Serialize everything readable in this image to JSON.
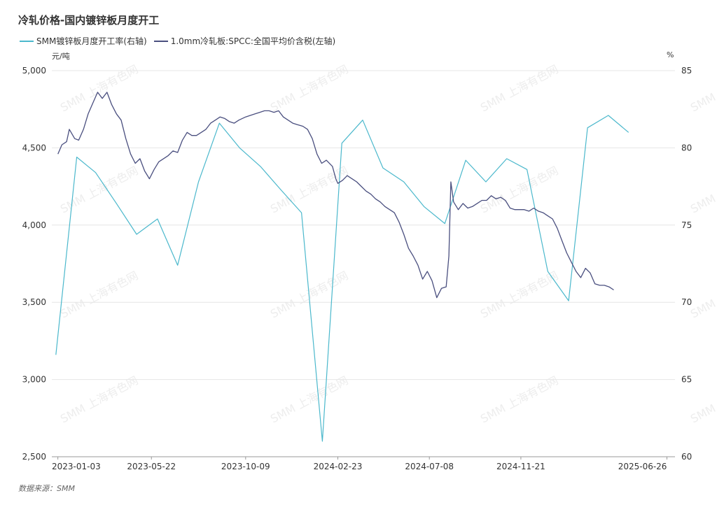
{
  "title": "冷轧价格-国内镀锌板月度开工",
  "source": "数据来源：SMM",
  "watermark": "SMM 上海有色网",
  "units": {
    "left": "元/吨",
    "right": "%"
  },
  "chart_data": {
    "type": "line",
    "title": "冷轧价格-国内镀锌板月度开工",
    "grid": true,
    "legend_position": "top-left",
    "x_range": [
      "2022-12-25",
      "2025-07-08"
    ],
    "x_ticks": [
      "2023-01-03",
      "2023-05-22",
      "2023-10-09",
      "2024-02-23",
      "2024-07-08",
      "2024-11-21",
      "2025-06-26"
    ],
    "left_axis": {
      "label": "元/吨",
      "ylim": [
        2500,
        5000
      ],
      "ticks": [
        "2,500",
        "3,000",
        "3,500",
        "4,000",
        "4,500",
        "5,000"
      ]
    },
    "right_axis": {
      "label": "%",
      "ylim": [
        60,
        85
      ],
      "ticks": [
        "60",
        "65",
        "70",
        "75",
        "80",
        "85"
      ]
    },
    "series": [
      {
        "name": "SMM镀锌板月度开工率(右轴)",
        "axis": "right",
        "color": "#4BB8CC",
        "points": [
          [
            "2022-12-31",
            66.6
          ],
          [
            "2023-01-31",
            79.4
          ],
          [
            "2023-02-28",
            78.4
          ],
          [
            "2023-03-31",
            76.4
          ],
          [
            "2023-04-30",
            74.4
          ],
          [
            "2023-05-31",
            75.4
          ],
          [
            "2023-06-30",
            72.4
          ],
          [
            "2023-07-31",
            77.8
          ],
          [
            "2023-08-31",
            81.6
          ],
          [
            "2023-09-30",
            80.0
          ],
          [
            "2023-10-31",
            78.8
          ],
          [
            "2023-11-30",
            77.3
          ],
          [
            "2023-12-31",
            75.8
          ],
          [
            "2024-01-31",
            61.0
          ],
          [
            "2024-02-29",
            80.3
          ],
          [
            "2024-03-31",
            81.8
          ],
          [
            "2024-04-30",
            78.7
          ],
          [
            "2024-05-31",
            77.8
          ],
          [
            "2024-06-30",
            76.2
          ],
          [
            "2024-07-31",
            75.1
          ],
          [
            "2024-08-31",
            79.2
          ],
          [
            "2024-09-30",
            77.8
          ],
          [
            "2024-10-31",
            79.3
          ],
          [
            "2024-11-30",
            78.6
          ],
          [
            "2024-12-31",
            72.0
          ],
          [
            "2025-01-31",
            70.1
          ],
          [
            "2025-02-28",
            81.3
          ],
          [
            "2025-03-31",
            82.1
          ],
          [
            "2025-04-30",
            81.0
          ]
        ]
      },
      {
        "name": "1.0mm冷轧板:SPCC:全国平均价含税(左轴)",
        "axis": "left",
        "color": "#4A4F7F",
        "points": [
          [
            "2023-01-03",
            4460
          ],
          [
            "2023-01-09",
            4520
          ],
          [
            "2023-01-16",
            4540
          ],
          [
            "2023-01-20",
            4620
          ],
          [
            "2023-01-28",
            4560
          ],
          [
            "2023-02-03",
            4550
          ],
          [
            "2023-02-10",
            4620
          ],
          [
            "2023-02-17",
            4720
          ],
          [
            "2023-02-24",
            4790
          ],
          [
            "2023-03-03",
            4860
          ],
          [
            "2023-03-10",
            4820
          ],
          [
            "2023-03-17",
            4860
          ],
          [
            "2023-03-24",
            4780
          ],
          [
            "2023-03-31",
            4720
          ],
          [
            "2023-04-07",
            4680
          ],
          [
            "2023-04-14",
            4560
          ],
          [
            "2023-04-21",
            4460
          ],
          [
            "2023-04-28",
            4400
          ],
          [
            "2023-05-05",
            4430
          ],
          [
            "2023-05-12",
            4350
          ],
          [
            "2023-05-19",
            4300
          ],
          [
            "2023-05-26",
            4360
          ],
          [
            "2023-06-02",
            4410
          ],
          [
            "2023-06-09",
            4430
          ],
          [
            "2023-06-16",
            4450
          ],
          [
            "2023-06-23",
            4480
          ],
          [
            "2023-06-30",
            4470
          ],
          [
            "2023-07-07",
            4550
          ],
          [
            "2023-07-14",
            4600
          ],
          [
            "2023-07-21",
            4580
          ],
          [
            "2023-07-28",
            4580
          ],
          [
            "2023-08-04",
            4600
          ],
          [
            "2023-08-11",
            4620
          ],
          [
            "2023-08-18",
            4660
          ],
          [
            "2023-08-25",
            4680
          ],
          [
            "2023-09-01",
            4700
          ],
          [
            "2023-09-08",
            4690
          ],
          [
            "2023-09-15",
            4670
          ],
          [
            "2023-09-22",
            4660
          ],
          [
            "2023-09-29",
            4680
          ],
          [
            "2023-10-09",
            4700
          ],
          [
            "2023-10-16",
            4710
          ],
          [
            "2023-10-23",
            4720
          ],
          [
            "2023-10-30",
            4730
          ],
          [
            "2023-11-06",
            4740
          ],
          [
            "2023-11-13",
            4740
          ],
          [
            "2023-11-20",
            4730
          ],
          [
            "2023-11-27",
            4740
          ],
          [
            "2023-12-04",
            4700
          ],
          [
            "2023-12-11",
            4680
          ],
          [
            "2023-12-18",
            4660
          ],
          [
            "2023-12-25",
            4650
          ],
          [
            "2024-01-02",
            4640
          ],
          [
            "2024-01-09",
            4620
          ],
          [
            "2024-01-16",
            4560
          ],
          [
            "2024-01-23",
            4460
          ],
          [
            "2024-01-30",
            4400
          ],
          [
            "2024-02-06",
            4420
          ],
          [
            "2024-02-15",
            4380
          ],
          [
            "2024-02-20",
            4300
          ],
          [
            "2024-02-23",
            4270
          ],
          [
            "2024-03-01",
            4290
          ],
          [
            "2024-03-08",
            4320
          ],
          [
            "2024-03-15",
            4300
          ],
          [
            "2024-03-22",
            4280
          ],
          [
            "2024-03-29",
            4250
          ],
          [
            "2024-04-05",
            4220
          ],
          [
            "2024-04-12",
            4200
          ],
          [
            "2024-04-19",
            4170
          ],
          [
            "2024-04-26",
            4150
          ],
          [
            "2024-05-03",
            4120
          ],
          [
            "2024-05-10",
            4100
          ],
          [
            "2024-05-17",
            4080
          ],
          [
            "2024-05-24",
            4020
          ],
          [
            "2024-05-31",
            3940
          ],
          [
            "2024-06-07",
            3850
          ],
          [
            "2024-06-14",
            3800
          ],
          [
            "2024-06-21",
            3740
          ],
          [
            "2024-06-28",
            3650
          ],
          [
            "2024-07-05",
            3700
          ],
          [
            "2024-07-12",
            3640
          ],
          [
            "2024-07-19",
            3530
          ],
          [
            "2024-07-26",
            3590
          ],
          [
            "2024-08-02",
            3600
          ],
          [
            "2024-08-06",
            3800
          ],
          [
            "2024-08-09",
            4280
          ],
          [
            "2024-08-13",
            4150
          ],
          [
            "2024-08-20",
            4100
          ],
          [
            "2024-08-27",
            4140
          ],
          [
            "2024-09-03",
            4110
          ],
          [
            "2024-09-10",
            4120
          ],
          [
            "2024-09-17",
            4140
          ],
          [
            "2024-09-24",
            4160
          ],
          [
            "2024-10-01",
            4160
          ],
          [
            "2024-10-08",
            4190
          ],
          [
            "2024-10-15",
            4170
          ],
          [
            "2024-10-22",
            4180
          ],
          [
            "2024-10-29",
            4160
          ],
          [
            "2024-11-05",
            4110
          ],
          [
            "2024-11-12",
            4100
          ],
          [
            "2024-11-19",
            4100
          ],
          [
            "2024-11-26",
            4100
          ],
          [
            "2024-12-03",
            4090
          ],
          [
            "2024-12-10",
            4110
          ],
          [
            "2024-12-17",
            4090
          ],
          [
            "2024-12-24",
            4080
          ],
          [
            "2024-12-31",
            4060
          ],
          [
            "2025-01-07",
            4040
          ],
          [
            "2025-01-14",
            3980
          ],
          [
            "2025-01-21",
            3900
          ],
          [
            "2025-01-28",
            3820
          ],
          [
            "2025-02-04",
            3760
          ],
          [
            "2025-02-11",
            3700
          ],
          [
            "2025-02-18",
            3660
          ],
          [
            "2025-02-25",
            3720
          ],
          [
            "2025-03-04",
            3690
          ],
          [
            "2025-03-11",
            3620
          ],
          [
            "2025-03-18",
            3610
          ],
          [
            "2025-03-25",
            3610
          ],
          [
            "2025-04-01",
            3600
          ],
          [
            "2025-04-08",
            3580
          ]
        ]
      }
    ]
  }
}
